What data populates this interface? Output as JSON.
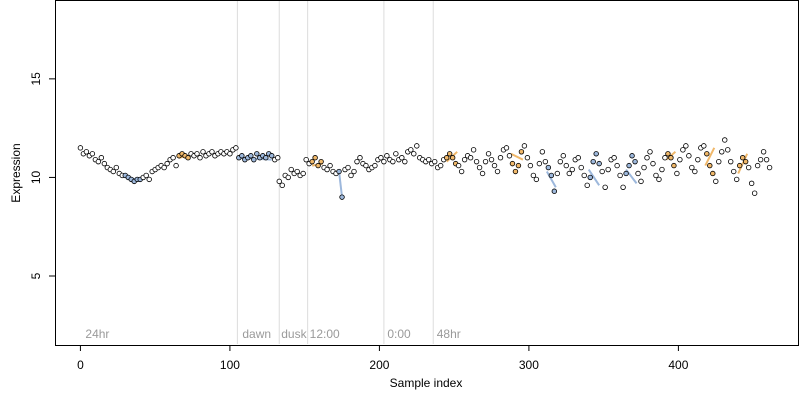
{
  "chart_data": {
    "type": "scatter",
    "title": "",
    "xlabel": "Sample index",
    "ylabel": "Expression",
    "xlim": [
      -17,
      480
    ],
    "ylim": [
      1.5,
      19
    ],
    "xticks": [
      0,
      100,
      200,
      300,
      400
    ],
    "yticks": [
      5,
      10,
      15
    ],
    "grid": false,
    "legend": "none",
    "phase_lines": [
      105,
      133,
      152,
      203,
      236
    ],
    "phase_labels": [
      {
        "text": "24hr",
        "x": 2
      },
      {
        "text": "dawn",
        "x": 107
      },
      {
        "text": "dusk",
        "x": 133
      },
      {
        "text": "12:00",
        "x": 152
      },
      {
        "text": "0:00",
        "x": 204
      },
      {
        "text": "48hr",
        "x": 237
      }
    ],
    "colors": {
      "blue": "#9db8dc",
      "orange": "#f0b86a",
      "black": "#ffffff",
      "edge": "#000000",
      "phase_line": "#dcdcdc"
    },
    "fit_segments": [
      {
        "color": "#9db8dc",
        "x": [
          30,
          40
        ],
        "y": [
          10.1,
          9.8
        ]
      },
      {
        "color": "#f0b86a",
        "x": [
          66,
          72
        ],
        "y": [
          11.0,
          11.1
        ]
      },
      {
        "color": "#9db8dc",
        "x": [
          106,
          128
        ],
        "y": [
          11.0,
          10.9
        ]
      },
      {
        "color": "#f0b86a",
        "x": [
          155,
          162
        ],
        "y": [
          10.6,
          10.7
        ]
      },
      {
        "color": "#9db8dc",
        "x": [
          173,
          175
        ],
        "y": [
          10.3,
          9.0
        ]
      },
      {
        "color": "#f0b86a",
        "x": [
          245,
          252
        ],
        "y": [
          10.8,
          11.3
        ]
      },
      {
        "color": "#f0b86a",
        "x": [
          288,
          296
        ],
        "y": [
          11.2,
          10.9
        ]
      },
      {
        "color": "#9db8dc",
        "x": [
          312,
          318
        ],
        "y": [
          10.3,
          9.5
        ]
      },
      {
        "color": "#9db8dc",
        "x": [
          340,
          347
        ],
        "y": [
          10.4,
          9.6
        ]
      },
      {
        "color": "#9db8dc",
        "x": [
          365,
          372
        ],
        "y": [
          10.4,
          9.7
        ]
      },
      {
        "color": "#f0b86a",
        "x": [
          392,
          398
        ],
        "y": [
          10.9,
          11.3
        ]
      },
      {
        "color": "#f0b86a",
        "x": [
          418,
          424
        ],
        "y": [
          10.6,
          11.5
        ]
      },
      {
        "color": "#f0b86a",
        "x": [
          440,
          446
        ],
        "y": [
          10.2,
          11.2
        ]
      }
    ],
    "series": [
      {
        "name": "",
        "color_key": "mixed",
        "x": [
          0,
          2,
          4,
          6,
          8,
          10,
          12,
          14,
          16,
          18,
          20,
          22,
          24,
          26,
          28,
          30,
          32,
          34,
          36,
          38,
          40,
          42,
          44,
          46,
          48,
          50,
          52,
          54,
          56,
          58,
          60,
          62,
          64,
          66,
          68,
          70,
          72,
          74,
          76,
          78,
          80,
          82,
          84,
          86,
          88,
          90,
          92,
          94,
          96,
          98,
          100,
          102,
          104,
          106,
          108,
          110,
          112,
          114,
          116,
          118,
          120,
          122,
          124,
          126,
          128,
          130,
          132,
          133,
          135,
          137,
          139,
          141,
          143,
          145,
          147,
          149,
          151,
          153,
          155,
          157,
          159,
          161,
          163,
          165,
          167,
          169,
          171,
          173,
          175,
          177,
          179,
          181,
          183,
          185,
          187,
          189,
          191,
          193,
          195,
          197,
          199,
          201,
          203,
          205,
          207,
          209,
          211,
          213,
          215,
          217,
          219,
          221,
          223,
          225,
          227,
          229,
          231,
          233,
          235,
          237,
          239,
          241,
          243,
          245,
          247,
          249,
          251,
          253,
          255,
          257,
          259,
          261,
          263,
          265,
          267,
          269,
          271,
          273,
          275,
          277,
          279,
          281,
          283,
          285,
          287,
          289,
          291,
          293,
          295,
          297,
          299,
          301,
          303,
          305,
          307,
          309,
          311,
          313,
          315,
          317,
          319,
          321,
          323,
          325,
          327,
          329,
          331,
          333,
          335,
          337,
          339,
          341,
          343,
          345,
          347,
          349,
          351,
          353,
          355,
          357,
          359,
          361,
          363,
          365,
          367,
          369,
          371,
          373,
          375,
          377,
          379,
          381,
          383,
          385,
          387,
          389,
          391,
          393,
          395,
          397,
          399,
          401,
          403,
          405,
          407,
          409,
          411,
          413,
          415,
          417,
          419,
          421,
          423,
          425,
          427,
          429,
          431,
          433,
          435,
          437,
          439,
          441,
          443,
          445,
          447,
          449,
          451,
          453,
          455,
          457,
          459,
          461
        ],
        "y": [
          11.5,
          11.2,
          11.3,
          11.1,
          11.2,
          10.9,
          10.8,
          11.0,
          10.7,
          10.5,
          10.4,
          10.3,
          10.5,
          10.2,
          10.1,
          10.1,
          10.0,
          9.9,
          9.8,
          9.9,
          9.9,
          10.0,
          10.1,
          9.9,
          10.3,
          10.4,
          10.5,
          10.6,
          10.5,
          10.7,
          10.9,
          11.0,
          10.6,
          11.1,
          11.2,
          11.1,
          11.0,
          11.2,
          11.1,
          11.2,
          11.0,
          11.3,
          11.1,
          11.2,
          11.3,
          11.1,
          11.2,
          11.3,
          11.2,
          11.3,
          11.2,
          11.4,
          11.5,
          11.0,
          11.1,
          10.9,
          11.0,
          11.1,
          10.9,
          11.2,
          11.0,
          11.1,
          11.0,
          11.2,
          11.1,
          10.9,
          11.0,
          9.8,
          9.6,
          10.1,
          10.0,
          10.4,
          10.2,
          10.3,
          10.1,
          10.2,
          10.9,
          10.7,
          10.8,
          11.0,
          10.6,
          10.8,
          10.5,
          10.4,
          10.6,
          10.3,
          10.2,
          10.3,
          9.0,
          10.4,
          10.5,
          10.1,
          10.3,
          10.8,
          11.0,
          10.7,
          10.6,
          10.4,
          10.5,
          10.6,
          10.9,
          11.0,
          10.8,
          11.1,
          10.9,
          10.8,
          11.2,
          10.9,
          11.0,
          10.8,
          11.3,
          11.4,
          11.2,
          11.6,
          11.0,
          10.9,
          10.8,
          10.9,
          10.7,
          10.8,
          10.5,
          10.6,
          10.9,
          11.0,
          11.2,
          11.0,
          10.7,
          10.6,
          10.3,
          10.9,
          11.1,
          11.0,
          11.4,
          10.8,
          10.5,
          10.2,
          10.8,
          11.2,
          10.9,
          10.6,
          10.3,
          11.0,
          11.4,
          11.5,
          11.1,
          10.7,
          10.3,
          10.6,
          11.3,
          11.6,
          11.0,
          10.6,
          10.1,
          9.9,
          10.7,
          11.3,
          10.8,
          10.5,
          10.1,
          9.3,
          10.2,
          10.8,
          11.1,
          10.6,
          10.2,
          10.4,
          10.9,
          11.0,
          10.5,
          10.1,
          9.6,
          10.0,
          10.8,
          11.2,
          10.7,
          10.3,
          9.5,
          10.4,
          10.9,
          11.0,
          10.6,
          10.1,
          9.5,
          10.2,
          10.6,
          11.1,
          10.8,
          10.2,
          9.8,
          10.5,
          11.0,
          11.3,
          10.7,
          10.1,
          9.9,
          10.4,
          11.0,
          11.2,
          11.0,
          10.6,
          10.2,
          10.9,
          11.4,
          11.6,
          11.1,
          10.5,
          10.3,
          10.9,
          11.5,
          11.6,
          11.2,
          10.6,
          10.2,
          9.8,
          10.8,
          11.3,
          11.9,
          11.4,
          10.8,
          10.3,
          9.9,
          10.6,
          11.0,
          10.8,
          10.5,
          9.7,
          9.2,
          10.6,
          10.9,
          11.3,
          10.9,
          10.5
        ]
      }
    ]
  }
}
